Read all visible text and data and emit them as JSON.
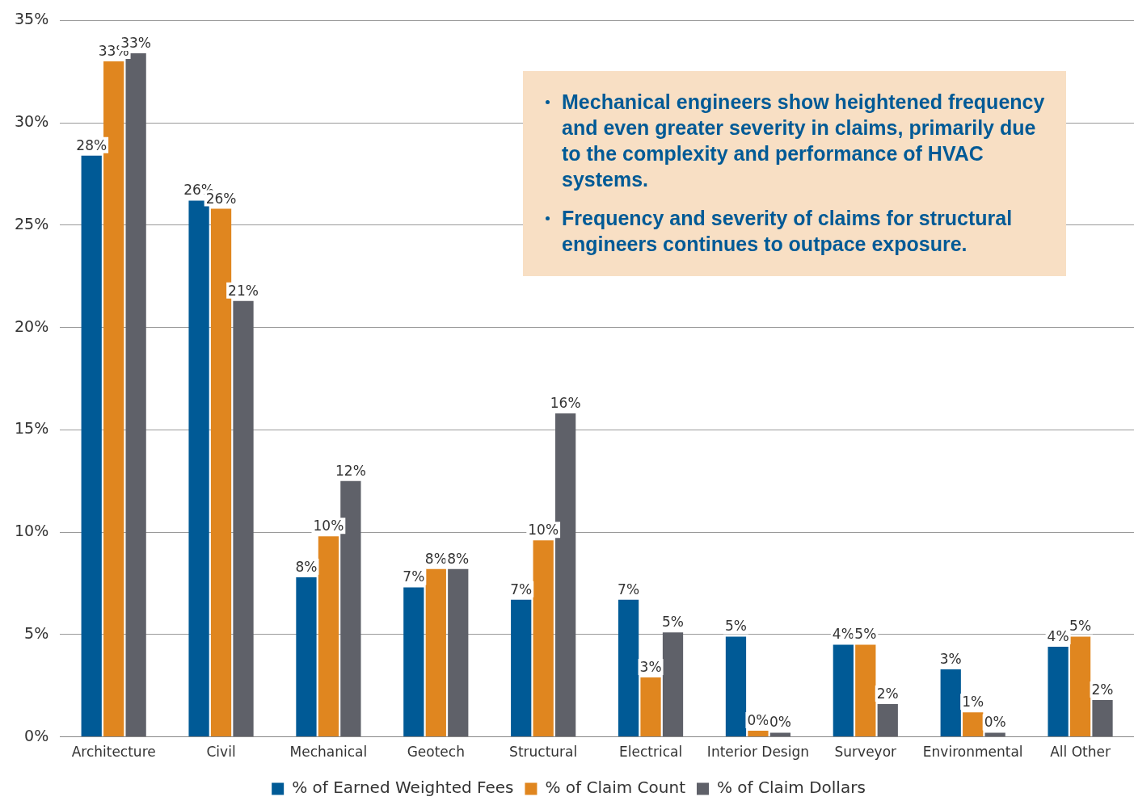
{
  "chart_data": {
    "type": "bar",
    "categories": [
      "Architecture",
      "Civil",
      "Mechanical",
      "Geotech",
      "Structural",
      "Electrical",
      "Interior Design",
      "Surveyor",
      "Environmental",
      "All Other"
    ],
    "series": [
      {
        "name": "% of Earned Weighted Fees",
        "color": "#005a96",
        "values": [
          28.4,
          26.2,
          7.8,
          7.3,
          6.7,
          6.7,
          4.9,
          4.5,
          3.3,
          4.4
        ],
        "value_labels": [
          "28%",
          "26%",
          "8%",
          "7%",
          "7%",
          "7%",
          "5%",
          "4%",
          "3%",
          "4%"
        ]
      },
      {
        "name": "% of Claim Count",
        "color": "#e0861f",
        "values": [
          33.0,
          25.8,
          9.8,
          8.2,
          9.6,
          2.9,
          0.3,
          4.5,
          1.2,
          4.9
        ],
        "value_labels": [
          "33%",
          "26%",
          "10%",
          "8%",
          "10%",
          "3%",
          "0%",
          "5%",
          "1%",
          "5%"
        ]
      },
      {
        "name": "% of Claim Dollars",
        "color": "#5f6169",
        "values": [
          33.4,
          21.3,
          12.5,
          8.2,
          15.8,
          5.1,
          0.2,
          1.6,
          0.2,
          1.8
        ],
        "value_labels": [
          "33%",
          "21%",
          "12%",
          "8%",
          "16%",
          "5%",
          "0%",
          "2%",
          "0%",
          "2%"
        ]
      }
    ],
    "ylim": [
      0,
      35
    ],
    "yticks": [
      {
        "value": 0,
        "label": "0%"
      },
      {
        "value": 5,
        "label": "5%"
      },
      {
        "value": 10,
        "label": "10%"
      },
      {
        "value": 15,
        "label": "15%"
      },
      {
        "value": 20,
        "label": "20%"
      },
      {
        "value": 25,
        "label": "25%"
      },
      {
        "value": 30,
        "label": "30%"
      },
      {
        "value": 35,
        "label": "35%"
      }
    ],
    "grid": "y",
    "legend": "bottom",
    "annotations": [
      "Mechanical engineers show heightened frequency and even greater severity in claims, primarily due to the complexity and performance of HVAC systems.",
      "Frequency and severity of claims for structural engineers continues to outpace exposure."
    ]
  }
}
